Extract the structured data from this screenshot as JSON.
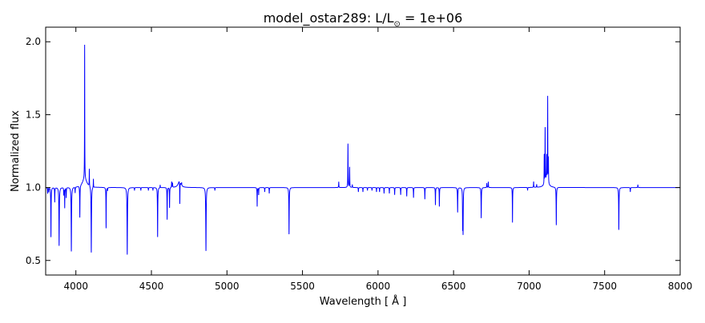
{
  "chart_data": {
    "type": "line",
    "title_prefix": "model_ostar289: L/L",
    "title_sub": "⊙",
    "title_suffix": " = 1e+06",
    "xlabel": "Wavelength [ Å ]",
    "ylabel": "Normalized flux",
    "xlim": [
      3800,
      8000
    ],
    "ylim": [
      0.4,
      2.1
    ],
    "xticks": [
      4000,
      4500,
      5000,
      5500,
      6000,
      6500,
      7000,
      7500,
      8000
    ],
    "xtick_labels": [
      "4000",
      "4500",
      "5000",
      "5500",
      "6000",
      "6500",
      "7000",
      "7500",
      "8000"
    ],
    "yticks": [
      0.5,
      1.0,
      1.5,
      2.0
    ],
    "ytick_labels": [
      "0.5",
      "1.0",
      "1.5",
      "2.0"
    ],
    "grid": false,
    "line_color": "#0000ff",
    "continuum": 1.0,
    "lines": [
      [
        3813,
        -0.04,
        1
      ],
      [
        3820,
        -0.03,
        1
      ],
      [
        3835,
        -0.34,
        1.2
      ],
      [
        3860,
        -0.1,
        1
      ],
      [
        3889,
        -0.4,
        1.5
      ],
      [
        3920,
        -0.05,
        1
      ],
      [
        3926,
        -0.14,
        1
      ],
      [
        3936,
        -0.07,
        1
      ],
      [
        3970,
        -0.44,
        1.5
      ],
      [
        3995,
        -0.04,
        1
      ],
      [
        4026,
        -0.22,
        1.2
      ],
      [
        4058,
        0.92,
        0.8
      ],
      [
        4058,
        0.06,
        18
      ],
      [
        4089,
        0.12,
        0.8
      ],
      [
        4102,
        -0.455,
        1.5
      ],
      [
        4116,
        0.06,
        0.8
      ],
      [
        4200,
        -0.28,
        1
      ],
      [
        4210,
        -0.02,
        1
      ],
      [
        4340,
        -0.46,
        1.6
      ],
      [
        4388,
        -0.02,
        1
      ],
      [
        4430,
        -0.02,
        1
      ],
      [
        4480,
        -0.02,
        1
      ],
      [
        4510,
        -0.02,
        1
      ],
      [
        4541,
        -0.34,
        1.2
      ],
      [
        4558,
        0.02,
        1
      ],
      [
        4604,
        -0.22,
        1
      ],
      [
        4620,
        -0.14,
        1
      ],
      [
        4634,
        0.04,
        1
      ],
      [
        4640,
        0.03,
        1
      ],
      [
        4686,
        0.05,
        10
      ],
      [
        4688,
        -0.16,
        1
      ],
      [
        4700,
        0.02,
        1
      ],
      [
        4861,
        -0.435,
        1.6
      ],
      [
        4920,
        -0.02,
        1
      ],
      [
        5200,
        -0.13,
        1
      ],
      [
        5210,
        -0.05,
        1
      ],
      [
        5250,
        -0.03,
        1
      ],
      [
        5280,
        -0.04,
        1
      ],
      [
        5411,
        -0.32,
        1.3
      ],
      [
        5740,
        0.04,
        1
      ],
      [
        5801,
        0.3,
        1
      ],
      [
        5812,
        0.14,
        1
      ],
      [
        5830,
        0.02,
        1
      ],
      [
        5870,
        -0.03,
        1
      ],
      [
        5900,
        -0.03,
        1
      ],
      [
        5930,
        -0.02,
        1
      ],
      [
        5960,
        -0.02,
        1
      ],
      [
        5990,
        -0.03,
        1
      ],
      [
        6010,
        -0.03,
        1
      ],
      [
        6040,
        -0.04,
        1
      ],
      [
        6075,
        -0.04,
        1
      ],
      [
        6110,
        -0.05,
        1
      ],
      [
        6150,
        -0.05,
        1
      ],
      [
        6190,
        -0.06,
        1
      ],
      [
        6235,
        -0.07,
        1
      ],
      [
        6310,
        -0.08,
        1
      ],
      [
        6380,
        -0.12,
        1
      ],
      [
        6406,
        -0.13,
        1
      ],
      [
        6527,
        -0.17,
        1.2
      ],
      [
        6560,
        -0.25,
        1
      ],
      [
        6563,
        -0.3,
        1.3
      ],
      [
        6683,
        -0.21,
        1.2
      ],
      [
        6720,
        0.03,
        1
      ],
      [
        6730,
        0.04,
        1
      ],
      [
        6890,
        -0.24,
        1
      ],
      [
        6990,
        -0.02,
        1
      ],
      [
        7030,
        0.04,
        1
      ],
      [
        7050,
        0.02,
        1
      ],
      [
        7100,
        0.2,
        0.8
      ],
      [
        7106,
        0.37,
        0.8
      ],
      [
        7116,
        0.16,
        0.8
      ],
      [
        7123,
        0.58,
        0.8
      ],
      [
        7128,
        0.17,
        0.8
      ],
      [
        7115,
        0.06,
        12
      ],
      [
        7180,
        -0.26,
        1.2
      ],
      [
        7594,
        -0.29,
        1.3
      ],
      [
        7670,
        -0.03,
        1
      ],
      [
        7720,
        0.02,
        1
      ]
    ]
  }
}
